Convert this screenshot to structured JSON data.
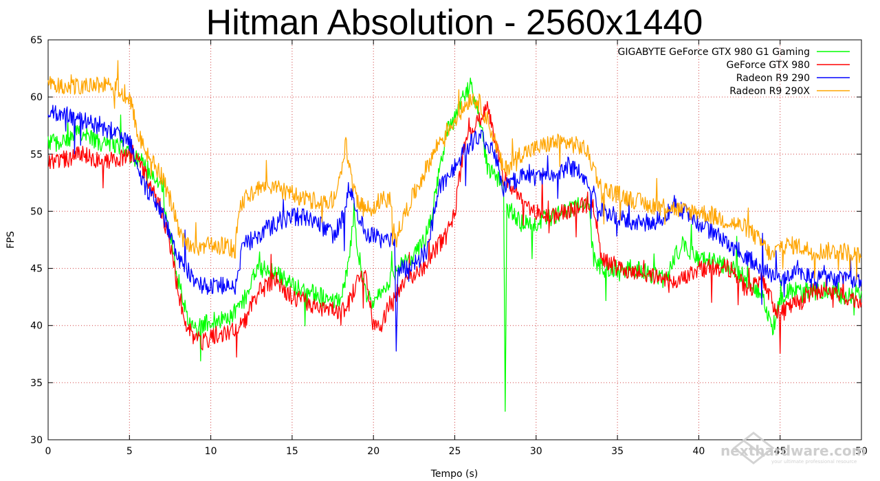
{
  "chart_data": {
    "type": "line",
    "title": "Hitman Absolution - 2560x1440",
    "xlabel": "Tempo (s)",
    "ylabel": "FPS",
    "xlim": [
      0,
      50
    ],
    "ylim": [
      30,
      65
    ],
    "xticks": [
      "0",
      "5",
      "10",
      "15",
      "20",
      "25",
      "30",
      "35",
      "40",
      "45",
      "50"
    ],
    "yticks": [
      "30",
      "35",
      "40",
      "45",
      "50",
      "55",
      "60",
      "65"
    ],
    "grid": true,
    "legend_position": "top-right",
    "series": [
      {
        "name": "GIGABYTE GeForce GTX 980 G1 Gaming",
        "color": "#00ff00",
        "x": [
          0,
          1,
          2,
          3,
          4,
          5,
          6,
          7,
          7.5,
          8,
          8.5,
          9,
          9.5,
          10,
          11,
          12,
          12.5,
          13,
          14,
          15,
          16,
          17,
          18,
          18.5,
          18.8,
          19,
          19.5,
          20,
          20.5,
          21,
          21.5,
          22,
          23,
          23.5,
          24,
          24.5,
          25,
          25.5,
          26,
          26.5,
          27,
          27.5,
          28,
          28.1,
          28.2,
          28.5,
          29,
          30,
          31,
          32,
          33,
          33.3,
          33.5,
          34,
          35,
          36,
          37,
          38,
          38.5,
          39,
          40,
          41,
          42,
          43,
          44,
          44.5,
          45,
          45.5,
          46,
          47,
          48,
          49,
          50
        ],
        "y": [
          56,
          56,
          57,
          56,
          56,
          55,
          54,
          52,
          48,
          44,
          41,
          39.5,
          40,
          40.5,
          40.5,
          42,
          44,
          45,
          44.5,
          43.5,
          43,
          42.5,
          42,
          46,
          50,
          47,
          43,
          41.5,
          43,
          44,
          45,
          45.5,
          47,
          49,
          53,
          57,
          58,
          60,
          61,
          58.5,
          54,
          53,
          52,
          33,
          50,
          50,
          49,
          49,
          49.5,
          50,
          51,
          50,
          46,
          45,
          45,
          45,
          44.5,
          44,
          46,
          47,
          46,
          45.5,
          45,
          44,
          42.5,
          39.5,
          42,
          43,
          43,
          43,
          43,
          42.5,
          43
        ]
      },
      {
        "name": "GeForce GTX 980",
        "color": "#ff0000",
        "x": [
          0,
          1,
          2,
          3,
          4,
          5,
          5.5,
          6,
          7,
          7.5,
          8,
          8.5,
          9,
          9.5,
          10,
          11,
          12,
          12.5,
          13,
          14,
          15,
          16,
          17,
          18,
          18.5,
          19,
          19.5,
          20,
          20.5,
          21,
          21.5,
          22,
          23,
          24,
          24.5,
          25,
          25.5,
          26,
          26.5,
          27,
          27.5,
          28,
          29,
          30,
          31,
          32,
          33,
          33.5,
          34,
          35,
          36,
          37,
          38,
          39,
          40,
          41,
          42,
          43,
          44,
          44.5,
          45,
          46,
          47,
          48,
          49,
          50
        ],
        "y": [
          54.5,
          54.5,
          55,
          54.5,
          54.5,
          55,
          55,
          53,
          50,
          47,
          43,
          40,
          39,
          38.5,
          39,
          39.5,
          40,
          42,
          43,
          44,
          42.5,
          42,
          41.5,
          41,
          42,
          44,
          45,
          40,
          40,
          42,
          43,
          44,
          45,
          47,
          48,
          50,
          55,
          57,
          58,
          59,
          56,
          53,
          51,
          50,
          49.5,
          50,
          50.5,
          51,
          46,
          45,
          44.5,
          44.5,
          44,
          44,
          45,
          45,
          45,
          43,
          44,
          42,
          41,
          42,
          43,
          43,
          42.5,
          42
        ]
      },
      {
        "name": "Radeon R9 290",
        "color": "#0000ff",
        "x": [
          0,
          1,
          2,
          3,
          4,
          5,
          5.5,
          6,
          7,
          7.5,
          8,
          8.5,
          9,
          9.5,
          10,
          11,
          11.5,
          12,
          13,
          14,
          15,
          16,
          17,
          17.5,
          18,
          18.5,
          19,
          19.5,
          20,
          20.5,
          21,
          21.3,
          21.4,
          21.5,
          22,
          23,
          23.5,
          24,
          25,
          25.5,
          26,
          26.5,
          27,
          27.5,
          28,
          29,
          30,
          31,
          32,
          33,
          33.5,
          34,
          35,
          36,
          37,
          38,
          38.5,
          39,
          40,
          41,
          42,
          43,
          44,
          45,
          46,
          47,
          48,
          49,
          50
        ],
        "y": [
          58.5,
          58.5,
          58,
          57.5,
          57,
          56,
          54,
          52,
          50,
          48,
          46,
          45,
          44,
          43.5,
          43.5,
          43.5,
          43.5,
          47,
          48,
          49,
          49.5,
          49.5,
          48.5,
          48,
          49,
          52,
          50,
          48,
          48,
          47.5,
          47.5,
          48,
          38,
          45,
          45,
          46,
          48,
          52,
          54,
          55,
          56,
          56.5,
          56,
          55,
          52,
          53,
          53,
          53,
          54,
          53,
          52,
          50,
          49.5,
          49,
          49,
          49.5,
          51,
          50,
          49,
          48,
          47,
          46,
          45,
          44,
          45,
          44,
          44,
          44,
          44
        ]
      },
      {
        "name": "Radeon R9 290X",
        "color": "#ffa500",
        "x": [
          0,
          1,
          2,
          3,
          4,
          5,
          5.5,
          6,
          7,
          7.5,
          8,
          8.5,
          9,
          9.5,
          10,
          11,
          11.5,
          11.7,
          12,
          13,
          14,
          15,
          16,
          17,
          17.5,
          18,
          18.3,
          18.5,
          19,
          19.5,
          20,
          20.5,
          21,
          21.3,
          21.5,
          22,
          23,
          24,
          24.5,
          25,
          25.5,
          26,
          26.5,
          27,
          27.5,
          28,
          29,
          30,
          31,
          32,
          33,
          33.5,
          34,
          35,
          36,
          37,
          38,
          39,
          40,
          41,
          42,
          43,
          44,
          44.5,
          45,
          46,
          47,
          48,
          49,
          50
        ],
        "y": [
          61,
          61,
          61,
          61,
          61,
          60,
          57,
          55,
          53,
          51,
          48.5,
          47,
          46.5,
          47,
          47,
          47,
          46.5,
          50,
          51,
          52,
          52,
          51.5,
          51,
          51,
          51,
          53,
          56,
          54,
          51,
          50,
          50.5,
          51,
          51,
          48,
          48,
          50,
          53,
          56,
          57,
          58,
          59,
          60,
          59.5,
          58,
          56,
          53.5,
          55,
          55.5,
          56,
          56,
          55.5,
          54,
          52,
          51.5,
          51,
          50.5,
          50.5,
          50,
          50,
          49.5,
          49,
          48.5,
          47,
          46,
          47,
          47,
          46.5,
          46.5,
          46.5,
          46
        ]
      }
    ]
  },
  "watermark": {
    "brand": "nexthardware.com",
    "tagline": "your ultimate professional resource"
  }
}
